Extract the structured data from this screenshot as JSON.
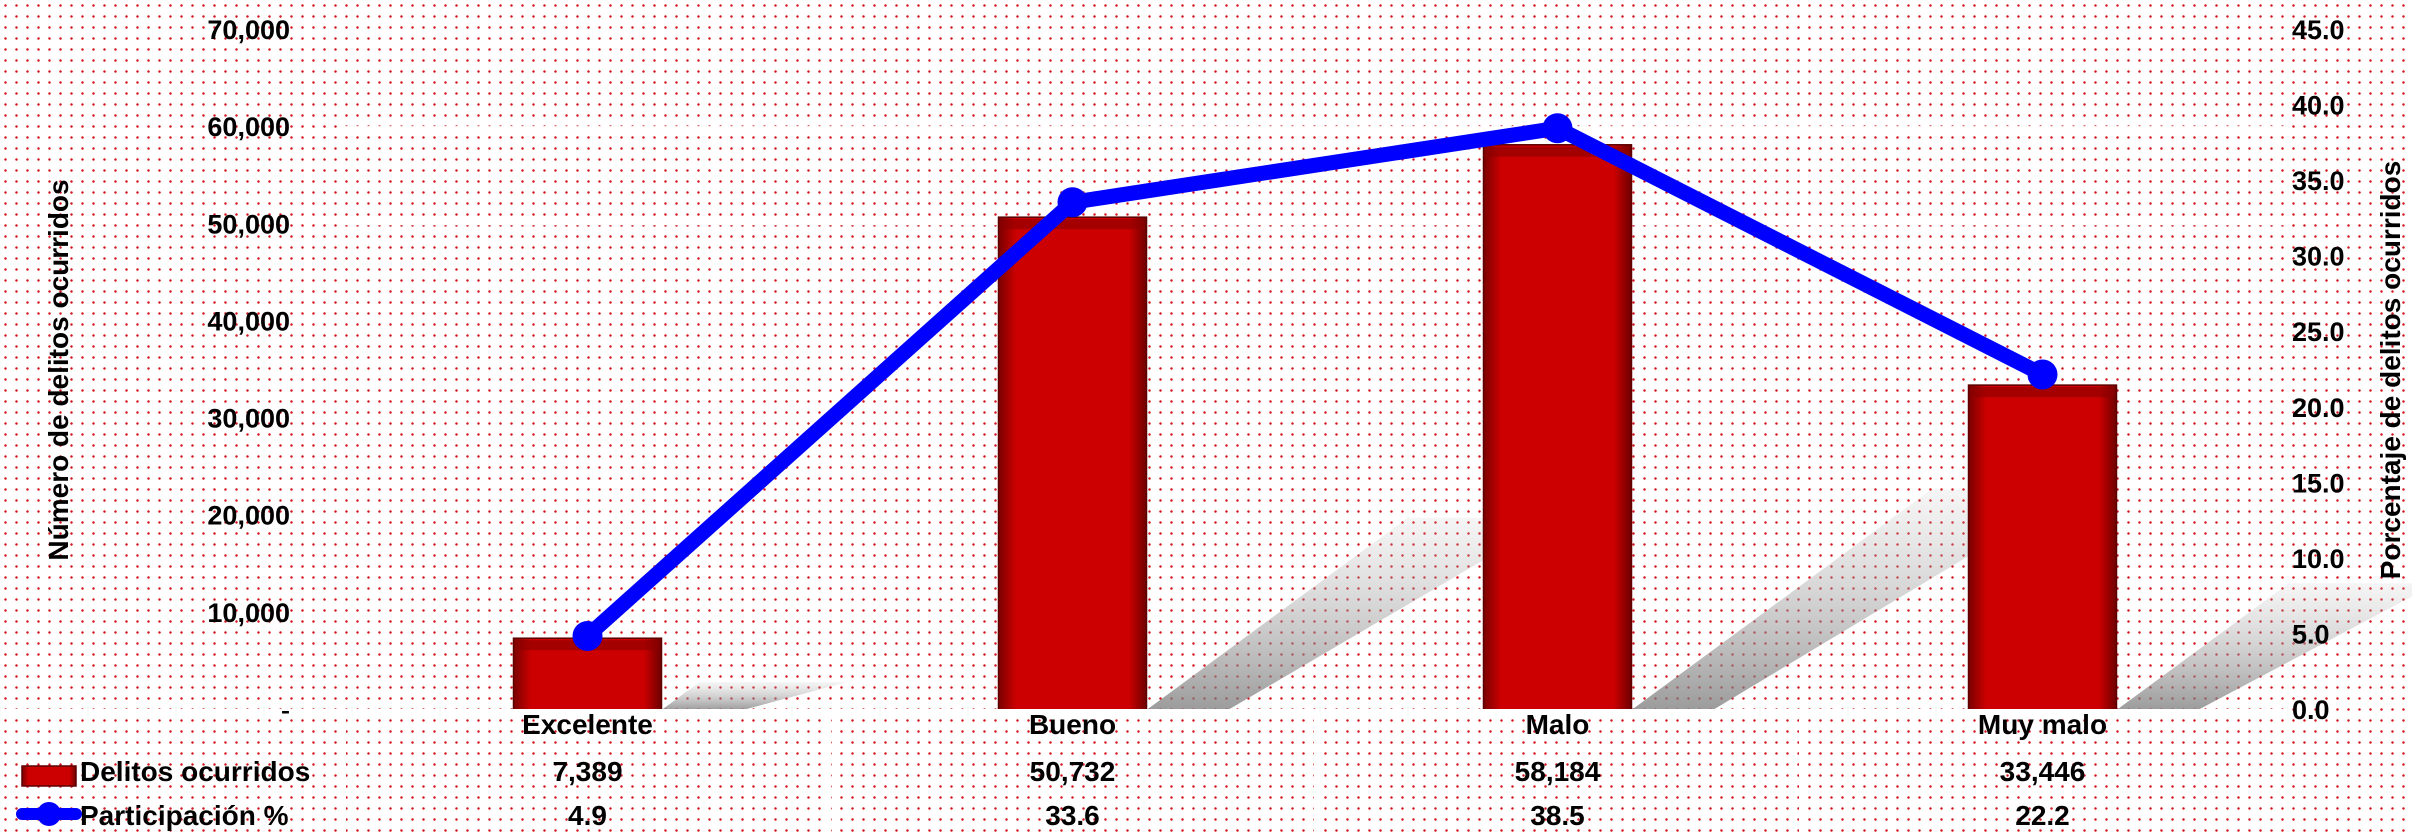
{
  "chart_data": {
    "type": "bar",
    "categories": [
      "Excelente",
      "Bueno",
      "Malo",
      "Muy malo"
    ],
    "series": [
      {
        "name": "Delitos ocurridos",
        "type": "bar",
        "axis": "left",
        "color": "#cc0000",
        "values": [
          7389,
          50732,
          58184,
          33446
        ],
        "labels": [
          "7,389",
          "50,732",
          "58,184",
          "33,446"
        ]
      },
      {
        "name": "Participación %",
        "type": "line",
        "axis": "right",
        "color": "#0000ff",
        "values": [
          4.9,
          33.6,
          38.5,
          22.2
        ],
        "labels": [
          "4.9",
          "33.6",
          "38.5",
          "22.2"
        ]
      }
    ],
    "ylabel": "Número de delitos ocurridos",
    "y2label": "Porcentaje de delitos ocurridos",
    "ylim": [
      0,
      70000
    ],
    "y2lim": [
      0,
      45
    ],
    "yticks": [
      {
        "value": 0,
        "label": "-"
      },
      {
        "value": 10000,
        "label": "10,000"
      },
      {
        "value": 20000,
        "label": "20,000"
      },
      {
        "value": 30000,
        "label": "30,000"
      },
      {
        "value": 40000,
        "label": "40,000"
      },
      {
        "value": 50000,
        "label": "50,000"
      },
      {
        "value": 60000,
        "label": "60,000"
      },
      {
        "value": 70000,
        "label": "70,000"
      }
    ],
    "y2ticks": [
      {
        "value": 0,
        "label": "0.0"
      },
      {
        "value": 5,
        "label": "5.0"
      },
      {
        "value": 10,
        "label": "10.0"
      },
      {
        "value": 15,
        "label": "15.0"
      },
      {
        "value": 20,
        "label": "20.0"
      },
      {
        "value": 25,
        "label": "25.0"
      },
      {
        "value": 30,
        "label": "30.0"
      },
      {
        "value": 35,
        "label": "35.0"
      },
      {
        "value": 40,
        "label": "40.0"
      },
      {
        "value": 45,
        "label": "45.0"
      }
    ],
    "grid": true,
    "legend": "data table below chart"
  }
}
